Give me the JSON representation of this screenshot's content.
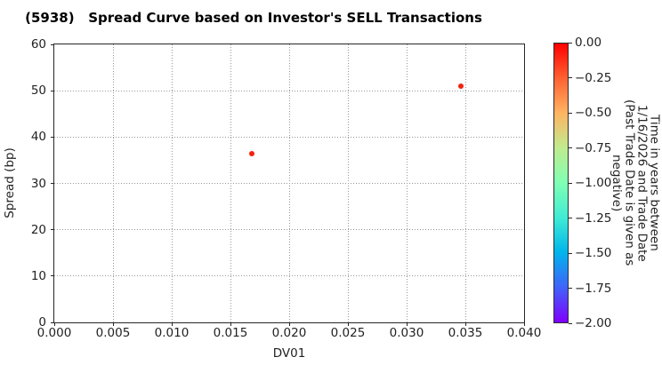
{
  "chart_data": {
    "type": "scatter",
    "title": "(5938)   Spread Curve based on Investor's SELL Transactions",
    "xlabel": "DV01",
    "ylabel": "Spread (bp)",
    "xlim": [
      0.0,
      0.04
    ],
    "ylim": [
      0,
      60
    ],
    "grid": true,
    "grid_style": "dotted",
    "x_ticks": [
      "0.000",
      "0.005",
      "0.010",
      "0.015",
      "0.020",
      "0.025",
      "0.030",
      "0.035",
      "0.040"
    ],
    "y_ticks": [
      "0",
      "10",
      "20",
      "30",
      "40",
      "50",
      "60"
    ],
    "points": [
      {
        "x": 0.0168,
        "y": 36.5,
        "time_value": 0.0,
        "color": "#f3220e"
      },
      {
        "x": 0.0346,
        "y": 51.0,
        "time_value": 0.0,
        "color": "#f3220e"
      }
    ],
    "colorbar": {
      "label": "Time in years between 1/16/2026 and Trade Date\n(Past Trade Date is given as negative)",
      "ticks": [
        "0.00",
        "−0.25",
        "−0.50",
        "−0.75",
        "−1.00",
        "−1.25",
        "−1.50",
        "−1.75",
        "−2.00"
      ],
      "range_top": 0.0,
      "range_bottom": -2.0,
      "colormap": "rainbow",
      "gradient_stops_top_to_bottom": [
        "#ff0000",
        "#ff6232",
        "#ffb462",
        "#bfec8e",
        "#80ffb4",
        "#40ecd4",
        "#00b4ec",
        "#4062fa",
        "#8000ff"
      ]
    },
    "colors": {
      "frame": "#262626",
      "grid": "#999999",
      "text": "#222222",
      "background": "#ffffff"
    }
  }
}
